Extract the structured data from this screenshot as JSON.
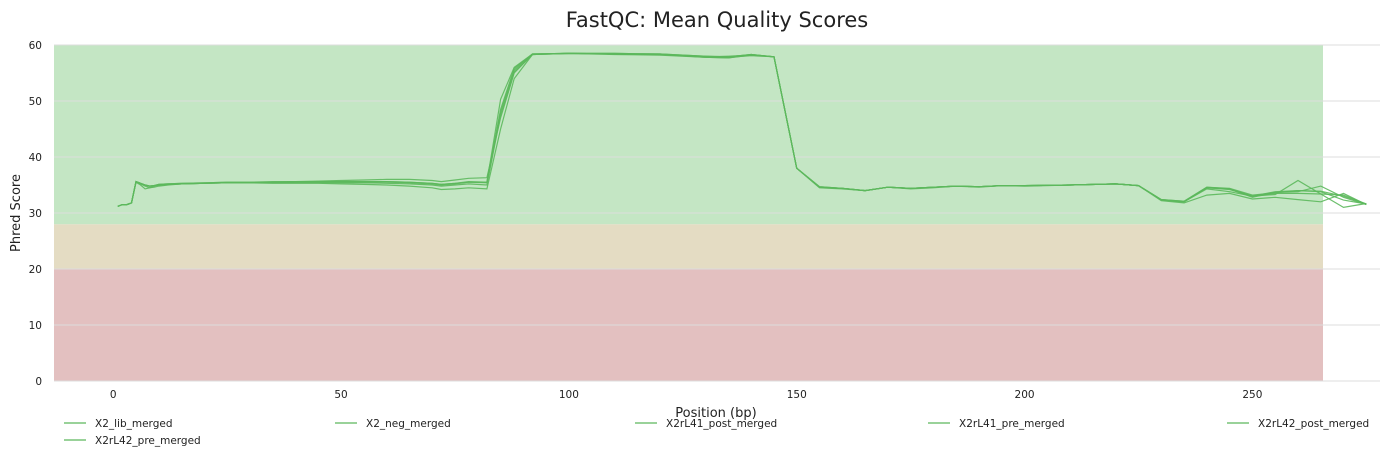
{
  "chart_data": {
    "type": "line",
    "title": "FastQC: Mean Quality Scores",
    "xlabel": "Position (bp)",
    "ylabel": "Phred Score",
    "xlim": [
      -13,
      278
    ],
    "ylim": [
      0,
      60
    ],
    "xticks": [
      0,
      50,
      100,
      150,
      200,
      250
    ],
    "yticks": [
      0,
      10,
      20,
      30,
      40,
      50,
      60
    ],
    "grid": true,
    "legend_position": "bottom",
    "bands": [
      {
        "from": 0,
        "to": 20,
        "color": "#e3c0c0"
      },
      {
        "from": 20,
        "to": 28,
        "color": "#e4dcc3"
      },
      {
        "from": 28,
        "to": 60,
        "color": "#c4e6c4"
      }
    ],
    "line_color": "#5cb85c",
    "series": [
      {
        "name": "X2_lib_merged",
        "x": [
          1,
          2,
          3,
          4,
          5,
          6,
          7,
          8,
          9,
          10,
          12,
          15,
          20,
          25,
          30,
          35,
          40,
          45,
          50,
          55,
          60,
          65,
          70,
          72,
          75,
          78,
          82,
          85,
          88,
          92,
          100,
          110,
          120,
          130,
          135,
          140,
          145,
          150,
          155,
          160,
          165,
          170,
          175,
          180,
          185,
          190,
          195,
          200,
          210,
          220,
          225,
          230,
          235,
          240,
          245,
          250,
          255,
          260,
          265,
          270,
          275
        ],
        "y": [
          31.2,
          31.5,
          31.5,
          31.8,
          35.6,
          35.2,
          34.8,
          34.5,
          34.6,
          34.8,
          35.0,
          35.2,
          35.3,
          35.4,
          35.4,
          35.5,
          35.6,
          35.7,
          35.8,
          35.9,
          36.0,
          36.0,
          35.8,
          35.6,
          35.9,
          36.2,
          36.3,
          47.0,
          55.0,
          58.3,
          58.5,
          58.4,
          58.3,
          57.9,
          58.0,
          58.2,
          57.9,
          38.0,
          34.6,
          34.4,
          34.0,
          34.6,
          34.4,
          34.6,
          34.8,
          34.7,
          34.9,
          34.9,
          35.0,
          35.2,
          34.9,
          32.3,
          32.0,
          34.5,
          34.2,
          33.0,
          33.8,
          34.0,
          33.9,
          33.0,
          31.6
        ]
      },
      {
        "name": "X2_neg_merged",
        "x": [
          1,
          2,
          3,
          4,
          5,
          6,
          7,
          8,
          9,
          10,
          12,
          15,
          20,
          25,
          30,
          35,
          40,
          45,
          50,
          55,
          60,
          65,
          70,
          72,
          75,
          78,
          82,
          85,
          88,
          92,
          100,
          110,
          120,
          130,
          135,
          140,
          145,
          150,
          155,
          160,
          165,
          170,
          175,
          180,
          185,
          190,
          195,
          200,
          210,
          220,
          225,
          230,
          235,
          240,
          245,
          250,
          255,
          260,
          265,
          270,
          275
        ],
        "y": [
          31.2,
          31.5,
          31.5,
          31.8,
          35.5,
          35.0,
          34.3,
          34.5,
          34.8,
          35.0,
          35.1,
          35.2,
          35.3,
          35.4,
          35.4,
          35.3,
          35.3,
          35.3,
          35.2,
          35.1,
          35.0,
          34.8,
          34.5,
          34.2,
          34.3,
          34.5,
          34.3,
          45.0,
          54.0,
          58.3,
          58.5,
          58.3,
          58.2,
          57.8,
          57.8,
          58.1,
          57.9,
          38.0,
          34.5,
          34.3,
          34.0,
          34.6,
          34.3,
          34.5,
          34.8,
          34.6,
          34.9,
          34.8,
          35.0,
          35.2,
          34.9,
          32.2,
          31.8,
          33.2,
          33.5,
          32.5,
          32.8,
          32.4,
          32.0,
          33.5,
          31.5
        ]
      },
      {
        "name": "X2rL41_post_merged",
        "x": [
          1,
          2,
          3,
          4,
          5,
          6,
          7,
          8,
          9,
          10,
          12,
          15,
          20,
          25,
          30,
          35,
          40,
          45,
          50,
          55,
          60,
          65,
          70,
          72,
          75,
          78,
          82,
          85,
          88,
          92,
          100,
          110,
          120,
          130,
          135,
          140,
          145,
          150,
          155,
          160,
          165,
          170,
          175,
          180,
          185,
          190,
          195,
          200,
          210,
          220,
          225,
          230,
          235,
          240,
          245,
          250,
          255,
          260,
          265,
          270,
          275
        ],
        "y": [
          31.2,
          31.5,
          31.5,
          31.8,
          35.6,
          35.3,
          35.0,
          34.8,
          34.9,
          35.0,
          35.1,
          35.2,
          35.3,
          35.4,
          35.4,
          35.4,
          35.5,
          35.5,
          35.5,
          35.5,
          35.5,
          35.4,
          35.2,
          35.0,
          35.2,
          35.5,
          35.4,
          48.0,
          55.5,
          58.4,
          58.5,
          58.4,
          58.4,
          57.8,
          57.7,
          58.3,
          57.9,
          38.0,
          34.6,
          34.4,
          34.0,
          34.6,
          34.4,
          34.6,
          34.8,
          34.7,
          34.9,
          34.9,
          35.0,
          35.2,
          34.9,
          32.4,
          32.0,
          34.3,
          33.8,
          33.0,
          33.5,
          33.5,
          33.4,
          33.2,
          31.6
        ]
      },
      {
        "name": "X2rL41_pre_merged",
        "x": [
          1,
          2,
          3,
          4,
          5,
          6,
          7,
          8,
          9,
          10,
          12,
          15,
          20,
          25,
          30,
          35,
          40,
          45,
          50,
          55,
          60,
          65,
          70,
          72,
          75,
          78,
          82,
          85,
          88,
          92,
          100,
          110,
          120,
          130,
          135,
          140,
          145,
          150,
          155,
          160,
          165,
          170,
          175,
          180,
          185,
          190,
          195,
          200,
          210,
          220,
          225,
          230,
          235,
          240,
          245,
          250,
          255,
          260,
          265,
          270,
          275
        ],
        "y": [
          31.2,
          31.5,
          31.5,
          31.8,
          35.6,
          35.3,
          35.0,
          34.8,
          34.9,
          35.1,
          35.2,
          35.3,
          35.4,
          35.5,
          35.5,
          35.5,
          35.6,
          35.6,
          35.6,
          35.6,
          35.6,
          35.5,
          35.3,
          35.1,
          35.3,
          35.6,
          35.5,
          48.5,
          55.8,
          58.4,
          58.5,
          58.5,
          58.4,
          58.0,
          57.9,
          58.3,
          57.9,
          38.0,
          34.7,
          34.4,
          34.0,
          34.6,
          34.4,
          34.6,
          34.8,
          34.7,
          34.9,
          34.9,
          35.0,
          35.2,
          34.9,
          32.4,
          32.1,
          34.6,
          34.3,
          33.0,
          33.3,
          35.8,
          33.4,
          31.0,
          31.7
        ]
      },
      {
        "name": "X2rL42_post_merged",
        "x": [
          1,
          2,
          3,
          4,
          5,
          6,
          7,
          8,
          9,
          10,
          12,
          15,
          20,
          25,
          30,
          35,
          40,
          45,
          50,
          55,
          60,
          65,
          70,
          72,
          75,
          78,
          82,
          85,
          88,
          92,
          100,
          110,
          120,
          130,
          135,
          140,
          145,
          150,
          155,
          160,
          165,
          170,
          175,
          180,
          185,
          190,
          195,
          200,
          210,
          220,
          225,
          230,
          235,
          240,
          245,
          250,
          255,
          260,
          265,
          270,
          275
        ],
        "y": [
          31.2,
          31.5,
          31.5,
          31.8,
          35.6,
          35.3,
          35.0,
          34.8,
          34.9,
          35.0,
          35.1,
          35.2,
          35.3,
          35.4,
          35.4,
          35.4,
          35.4,
          35.4,
          35.4,
          35.4,
          35.3,
          35.2,
          35.0,
          34.8,
          35.0,
          35.2,
          35.0,
          47.5,
          55.2,
          58.3,
          58.5,
          58.4,
          58.3,
          57.8,
          57.7,
          58.2,
          57.9,
          38.0,
          34.6,
          34.4,
          34.0,
          34.6,
          34.4,
          34.6,
          34.8,
          34.7,
          34.9,
          34.9,
          35.0,
          35.2,
          34.9,
          32.3,
          32.0,
          34.5,
          34.3,
          32.8,
          33.7,
          33.8,
          34.8,
          32.8,
          31.5
        ]
      },
      {
        "name": "X2rL42_pre_merged",
        "x": [
          1,
          2,
          3,
          4,
          5,
          6,
          7,
          8,
          9,
          10,
          12,
          15,
          20,
          25,
          30,
          35,
          40,
          45,
          50,
          55,
          60,
          65,
          70,
          72,
          75,
          78,
          82,
          85,
          88,
          92,
          100,
          110,
          120,
          130,
          135,
          140,
          145,
          150,
          155,
          160,
          165,
          170,
          175,
          180,
          185,
          190,
          195,
          200,
          210,
          220,
          225,
          230,
          235,
          240,
          245,
          250,
          255,
          260,
          265,
          270,
          275
        ],
        "y": [
          31.2,
          31.5,
          31.5,
          31.8,
          35.6,
          35.3,
          35.0,
          34.8,
          34.9,
          35.1,
          35.2,
          35.3,
          35.4,
          35.5,
          35.5,
          35.6,
          35.6,
          35.6,
          35.6,
          35.6,
          35.6,
          35.5,
          35.3,
          35.1,
          35.3,
          35.5,
          35.5,
          50.3,
          56.0,
          58.4,
          58.5,
          58.5,
          58.4,
          58.0,
          57.9,
          58.3,
          57.9,
          38.0,
          34.7,
          34.4,
          34.0,
          34.6,
          34.4,
          34.6,
          34.8,
          34.7,
          34.9,
          34.9,
          35.0,
          35.2,
          34.9,
          32.4,
          32.1,
          34.6,
          34.4,
          33.2,
          33.6,
          34.0,
          33.8,
          32.3,
          31.6
        ]
      }
    ]
  }
}
